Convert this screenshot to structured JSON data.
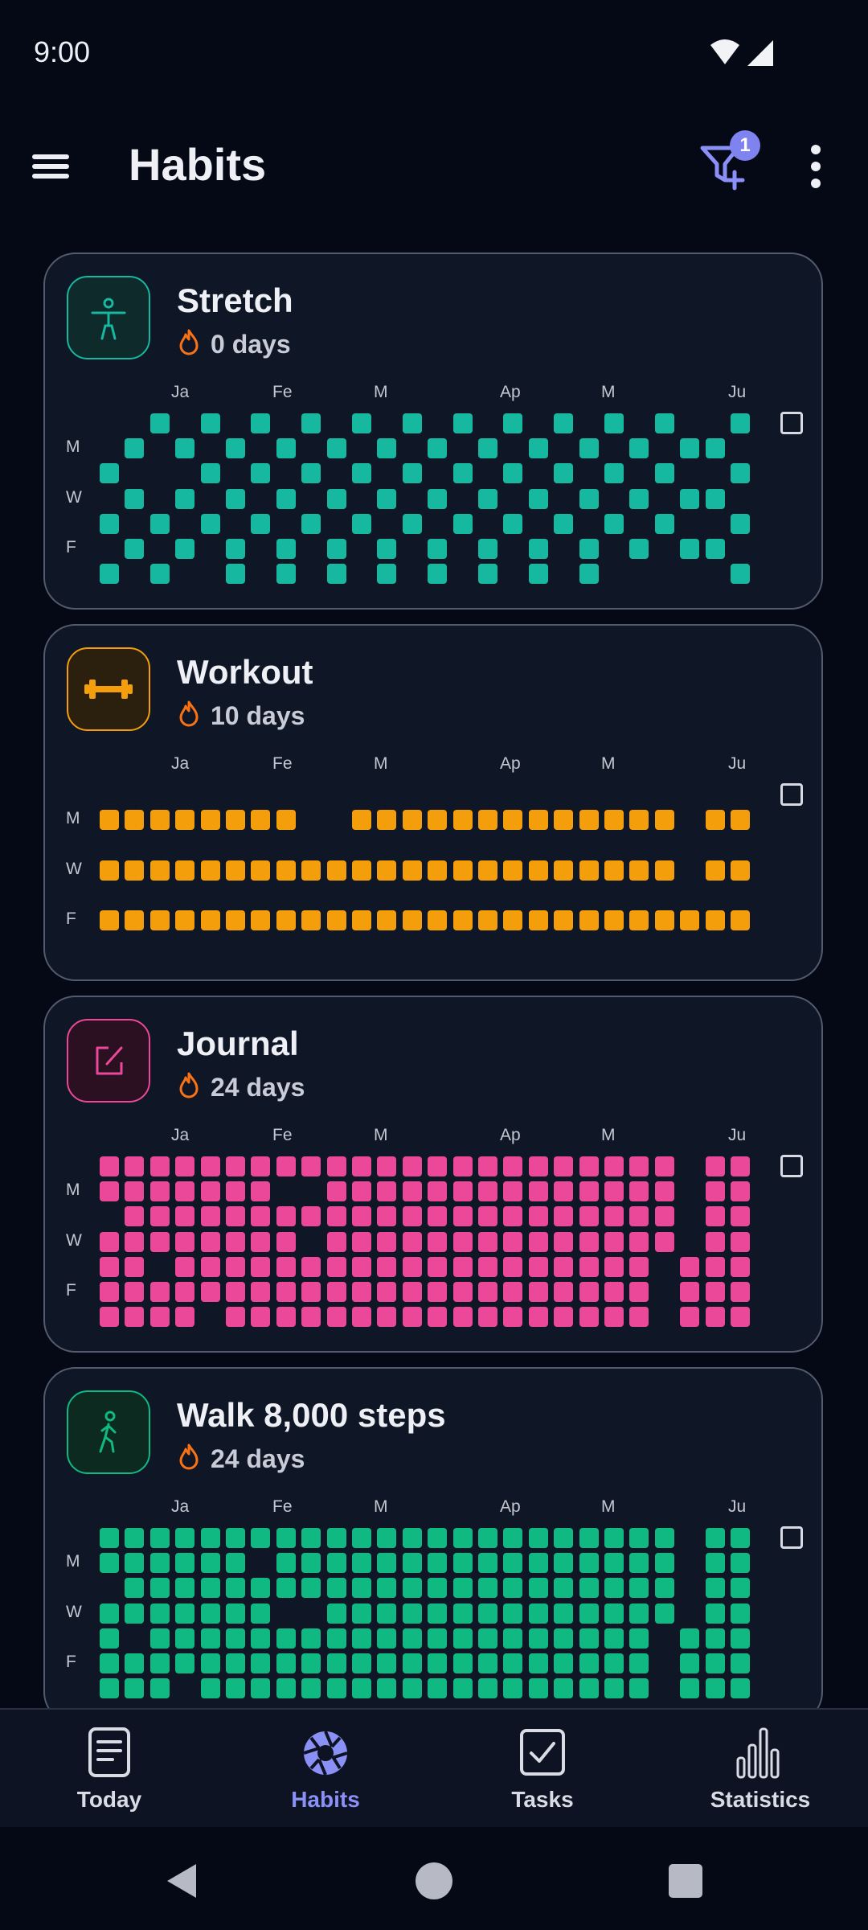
{
  "status_bar": {
    "time": "9:00"
  },
  "app_bar": {
    "title": "Habits",
    "filter_badge": "1"
  },
  "colors": {
    "background": "#050915",
    "card": "#0f1626",
    "accent": "#8b90f6",
    "stretch": "#16b8a0",
    "workout": "#f59e0b",
    "journal": "#ec4899",
    "walk": "#10b981",
    "flame": "#f97316"
  },
  "habits": [
    {
      "name": "Stretch",
      "icon": "person-stretch-icon",
      "color": "#16b8a0",
      "streak": "0 days",
      "months": [
        "Ja",
        "Fe",
        "M",
        "Ap",
        "M",
        "Ju"
      ],
      "day_labels": [
        "M",
        "W",
        "F"
      ],
      "grid": [
        "00101010101010101010101001",
        "01010101010101010101010110",
        "10001010101010101010101001",
        "01010101010101010101010110",
        "10101010101010101010101001",
        "01010101010101010101010110",
        "10100101010101010101000001"
      ]
    },
    {
      "name": "Workout",
      "icon": "dumbbell-icon",
      "color": "#f59e0b",
      "streak": "10 days",
      "months": [
        "Ja",
        "Fe",
        "M",
        "Ap",
        "M",
        "Ju"
      ],
      "day_labels": [
        "M",
        "W",
        "F"
      ],
      "grid": [
        "00000000000000000000000000",
        "11111111001111111111111011",
        "00000000000000000000000000",
        "11111111111111111111111011",
        "00000000000000000000000000",
        "11111111111111111111111111",
        "00000000000000000000000000"
      ]
    },
    {
      "name": "Journal",
      "icon": "edit-note-icon",
      "color": "#ec4899",
      "streak": "24 days",
      "months": [
        "Ja",
        "Fe",
        "M",
        "Ap",
        "M",
        "Ju"
      ],
      "day_labels": [
        "M",
        "W",
        "F"
      ],
      "grid": [
        "11111111111111111111111011",
        "11111110011111111111111011",
        "01111111111111111111111011",
        "11111111011111111111111011",
        "11011111111111111111110111",
        "11111111111111111111110111",
        "11110111111111111111110111"
      ]
    },
    {
      "name": "Walk 8,000 steps",
      "icon": "walking-person-icon",
      "color": "#10b981",
      "streak": "24 days",
      "months": [
        "Ja",
        "Fe",
        "M",
        "Ap",
        "M",
        "Ju"
      ],
      "day_labels": [
        "M",
        "W",
        "F"
      ],
      "grid": [
        "11111111111111111111111011",
        "11111101111111111111111011",
        "01111111111111111111111011",
        "11111110011111111111111011",
        "10111111111111111111110111",
        "11111111111111111111110111",
        "11101111111111111111110111"
      ]
    }
  ],
  "bottom_nav": [
    {
      "label": "Today",
      "icon": "today-list-icon",
      "active": false
    },
    {
      "label": "Habits",
      "icon": "habits-aperture-icon",
      "active": true
    },
    {
      "label": "Tasks",
      "icon": "tasks-checkbox-icon",
      "active": false
    },
    {
      "label": "Statistics",
      "icon": "statistics-bars-icon",
      "active": false
    }
  ]
}
